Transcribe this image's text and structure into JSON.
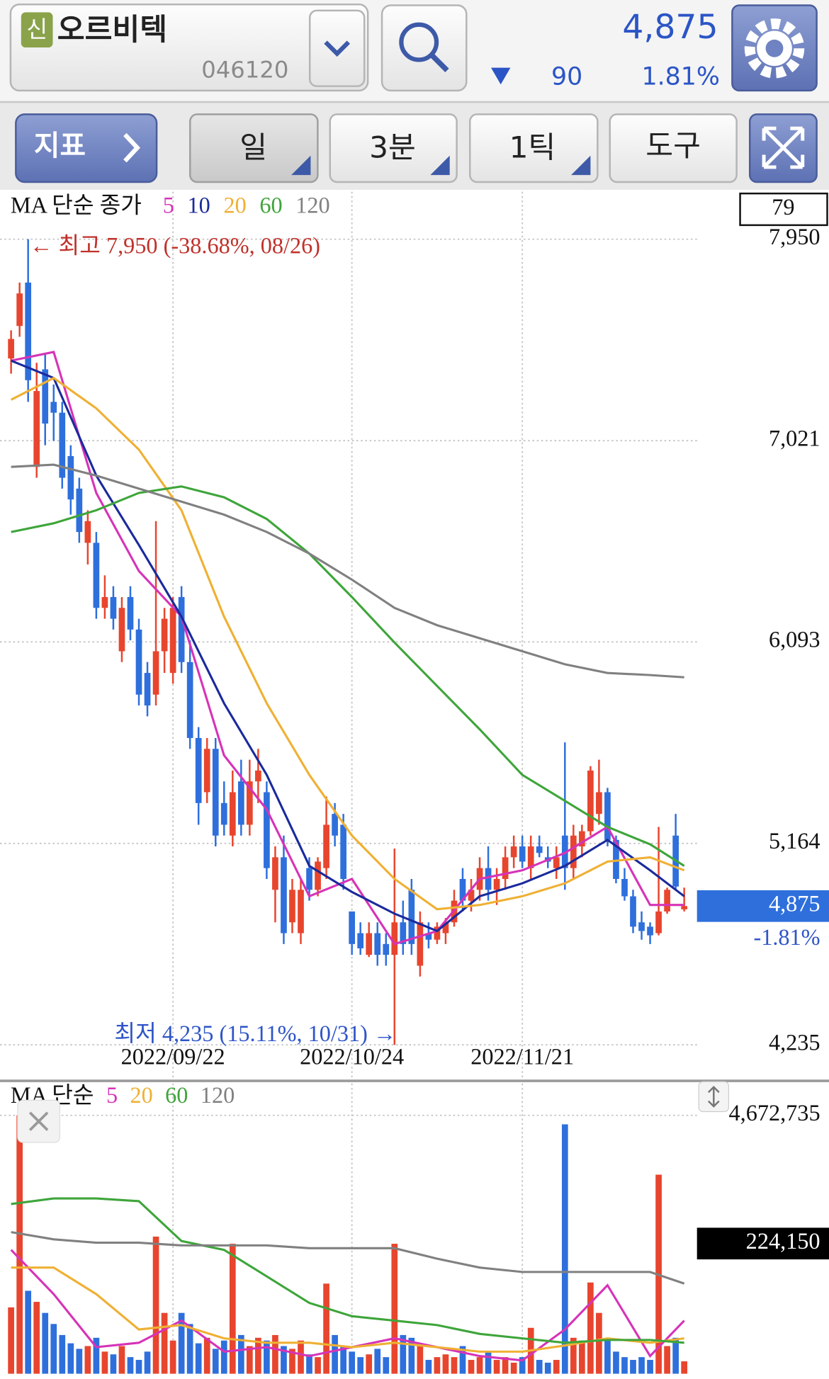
{
  "header": {
    "badge": "신",
    "name": "오르비텍",
    "code": "046120",
    "price": "4,875",
    "change": "90",
    "change_rate": "1.81%"
  },
  "toolbar": {
    "indicator": "지표",
    "period": "일",
    "minute": "3분",
    "tick": "1틱",
    "tools": "도구"
  },
  "chart_data": [
    {
      "type": "candlestick",
      "legend_title": "MA 단순 종가",
      "badge": "79",
      "up_color": "#e8452e",
      "down_color": "#2e6fdc",
      "candles": [
        [
          7400,
          7530,
          7330,
          7490
        ],
        [
          7550,
          7750,
          7500,
          7700
        ],
        [
          7750,
          7950,
          7200,
          7300
        ],
        [
          6900,
          7380,
          6850,
          7250
        ],
        [
          7350,
          7420,
          7000,
          7100
        ],
        [
          7200,
          7280,
          7020,
          7150
        ],
        [
          7150,
          7200,
          6800,
          6850
        ],
        [
          6950,
          7000,
          6680,
          6750
        ],
        [
          6800,
          6850,
          6550,
          6600
        ],
        [
          6550,
          6700,
          6450,
          6650
        ],
        [
          6550,
          6600,
          6200,
          6250
        ],
        [
          6250,
          6400,
          6200,
          6300
        ],
        [
          6300,
          6350,
          6150,
          6200
        ],
        [
          6050,
          6300,
          6000,
          6250
        ],
        [
          6300,
          6350,
          6100,
          6150
        ],
        [
          6150,
          6200,
          5800,
          5850
        ],
        [
          5950,
          6000,
          5750,
          5800
        ],
        [
          5850,
          6650,
          5800,
          6050
        ],
        [
          6050,
          6250,
          5950,
          6200
        ],
        [
          5950,
          6300,
          5900,
          6250
        ],
        [
          6300,
          6350,
          5950,
          6000
        ],
        [
          6000,
          6100,
          5600,
          5650
        ],
        [
          5650,
          5700,
          5250,
          5350
        ],
        [
          5400,
          5650,
          5350,
          5600
        ],
        [
          5600,
          5650,
          5150,
          5200
        ],
        [
          5350,
          5450,
          5200,
          5250
        ],
        [
          5200,
          5500,
          5150,
          5400
        ],
        [
          5450,
          5550,
          5200,
          5250
        ],
        [
          5250,
          5550,
          5200,
          5450
        ],
        [
          5450,
          5600,
          5350,
          5500
        ],
        [
          5400,
          5450,
          5000,
          5050
        ],
        [
          4950,
          5150,
          4800,
          5100
        ],
        [
          5100,
          5200,
          4700,
          4750
        ],
        [
          4800,
          5000,
          4750,
          4950
        ],
        [
          4750,
          5000,
          4700,
          4950
        ],
        [
          5050,
          5100,
          4900,
          4950
        ],
        [
          4950,
          5100,
          4920,
          5080
        ],
        [
          5050,
          5380,
          5000,
          5250
        ],
        [
          5300,
          5350,
          5150,
          5200
        ],
        [
          5250,
          5300,
          4950,
          5000
        ],
        [
          4850,
          4850,
          4650,
          4700
        ],
        [
          4750,
          4800,
          4650,
          4680
        ],
        [
          4650,
          4800,
          4640,
          4750
        ],
        [
          4750,
          4800,
          4600,
          4650
        ],
        [
          4700,
          4750,
          4600,
          4650
        ],
        [
          4650,
          5140,
          4235,
          4800
        ],
        [
          4800,
          4900,
          4650,
          4700
        ],
        [
          4950,
          5000,
          4650,
          4700
        ],
        [
          4600,
          4850,
          4550,
          4800
        ],
        [
          4750,
          4800,
          4680,
          4720
        ],
        [
          4720,
          4800,
          4700,
          4780
        ],
        [
          4750,
          4820,
          4700,
          4800
        ],
        [
          4800,
          4950,
          4780,
          4900
        ],
        [
          5000,
          5050,
          4850,
          4900
        ],
        [
          4900,
          5000,
          4850,
          4950
        ],
        [
          4950,
          5100,
          4900,
          5050
        ],
        [
          5050,
          5150,
          4900,
          4950
        ],
        [
          4950,
          5050,
          4880,
          5000
        ],
        [
          5000,
          5150,
          4950,
          5100
        ],
        [
          5100,
          5200,
          5050,
          5150
        ],
        [
          5150,
          5200,
          5050,
          5080
        ],
        [
          5050,
          5200,
          5000,
          5150
        ],
        [
          5150,
          5200,
          5100,
          5120
        ],
        [
          5100,
          5150,
          5050,
          5080
        ],
        [
          5050,
          5150,
          5000,
          5100
        ],
        [
          5200,
          5630,
          4950,
          5050
        ],
        [
          5050,
          5250,
          5000,
          5200
        ],
        [
          5150,
          5250,
          5100,
          5220
        ],
        [
          5220,
          5520,
          5200,
          5500
        ],
        [
          5300,
          5550,
          5250,
          5400
        ],
        [
          5400,
          5420,
          5150,
          5180
        ],
        [
          5180,
          5200,
          4980,
          5000
        ],
        [
          5000,
          5050,
          4900,
          4920
        ],
        [
          4920,
          4950,
          4750,
          4780
        ],
        [
          4800,
          4850,
          4720,
          4760
        ],
        [
          4780,
          4800,
          4700,
          4740
        ],
        [
          4750,
          5240,
          4740,
          4850
        ],
        [
          4850,
          4960,
          4840,
          4950
        ],
        [
          5200,
          5300,
          4950,
          4965
        ],
        [
          4860,
          4960,
          4850,
          4875
        ]
      ],
      "ma_x": [
        0,
        5,
        10,
        15,
        20,
        25,
        30,
        35,
        40,
        45,
        50,
        55,
        60,
        65,
        70,
        75,
        79
      ],
      "series": [
        {
          "name": "5",
          "color": "#d633b8",
          "values": [
            7390,
            7430,
            6780,
            6420,
            6210,
            5570,
            5320,
            4920,
            5000,
            4700,
            4760,
            5000,
            5040,
            5120,
            5240,
            4880,
            4880
          ]
        },
        {
          "name": "10",
          "color": "#1a2a9c",
          "values": [
            7390,
            7310,
            6860,
            6540,
            6210,
            5810,
            5480,
            5060,
            4940,
            4840,
            4760,
            4920,
            4980,
            5060,
            5180,
            5040,
            4920
          ]
        },
        {
          "name": "20",
          "color": "#efb033",
          "values": [
            7210,
            7310,
            7170,
            6980,
            6700,
            6210,
            5810,
            5480,
            5200,
            5000,
            4860,
            4880,
            4920,
            4980,
            5080,
            5100,
            5040
          ]
        },
        {
          "name": "60",
          "color": "#3ea53a",
          "values": [
            6600,
            6640,
            6700,
            6780,
            6810,
            6760,
            6660,
            6500,
            6300,
            6090,
            5890,
            5690,
            5480,
            5360,
            5240,
            5160,
            5060
          ]
        },
        {
          "name": "120",
          "color": "#808080",
          "values": [
            6900,
            6910,
            6860,
            6800,
            6740,
            6680,
            6600,
            6500,
            6380,
            6250,
            6170,
            6110,
            6050,
            5990,
            5950,
            5940,
            5930
          ]
        }
      ],
      "xlim": [
        -1.3,
        80.5
      ],
      "ylim": [
        4073,
        8169
      ],
      "xticks": [
        {
          "value": 19,
          "label": "2022/09/22"
        },
        {
          "value": 40,
          "label": "2022/10/24"
        },
        {
          "value": 60,
          "label": "2022/11/21"
        }
      ],
      "yticks": [
        {
          "value": 7950,
          "label": "7,950"
        },
        {
          "value": 7021,
          "label": "7,021"
        },
        {
          "value": 6093,
          "label": "6,093"
        },
        {
          "value": 5164,
          "label": "5,164"
        },
        {
          "value": 4235,
          "label": "4,235"
        }
      ],
      "grid": true,
      "annotations": {
        "high": "← 최고 7,950 (-38.68%, 08/26)",
        "low": "최저 4,235 (15.11%, 10/31) →"
      },
      "last_price": {
        "value": 4875,
        "label": "4,875"
      },
      "last_change": "-1.81%"
    },
    {
      "type": "bar",
      "legend_title": "MA 단순",
      "values": [
        1200000,
        4672735,
        1500000,
        1300000,
        1100000,
        900000,
        700000,
        550000,
        450000,
        500000,
        650000,
        400000,
        350000,
        500000,
        300000,
        250000,
        400000,
        2480000,
        1100000,
        600000,
        1100000,
        900000,
        550000,
        650000,
        450000,
        600000,
        2350000,
        700000,
        500000,
        650000,
        600000,
        700000,
        500000,
        450000,
        600000,
        350000,
        300000,
        1630000,
        700000,
        500000,
        400000,
        300000,
        350000,
        450000,
        300000,
        2350000,
        700000,
        650000,
        500000,
        250000,
        300000,
        350000,
        300000,
        500000,
        250000,
        300000,
        400000,
        250000,
        300000,
        200000,
        300000,
        830000,
        250000,
        200000,
        250000,
        4510000,
        650000,
        600000,
        1650000,
        1100000,
        600000,
        400000,
        300000,
        250000,
        300000,
        250000,
        3600000,
        500000,
        650000,
        224150
      ],
      "ma_x": [
        0,
        5,
        10,
        15,
        20,
        25,
        30,
        35,
        40,
        45,
        50,
        55,
        60,
        65,
        70,
        75,
        79
      ],
      "series": [
        {
          "name": "5",
          "color": "#d633b8",
          "values": [
            2240000,
            1440000,
            480000,
            560000,
            960000,
            400000,
            480000,
            320000,
            480000,
            640000,
            480000,
            320000,
            240000,
            800000,
            1600000,
            320000,
            960000
          ]
        },
        {
          "name": "20",
          "color": "#efb033",
          "values": [
            1920000,
            1920000,
            1440000,
            800000,
            880000,
            640000,
            560000,
            560000,
            480000,
            560000,
            480000,
            400000,
            400000,
            510000,
            640000,
            560000,
            640000
          ]
        },
        {
          "name": "60",
          "color": "#3ea53a",
          "values": [
            3070000,
            3170000,
            3170000,
            3120000,
            2400000,
            2240000,
            1760000,
            1280000,
            1040000,
            960000,
            880000,
            720000,
            640000,
            560000,
            610000,
            610000,
            560000
          ]
        },
        {
          "name": "120",
          "color": "#808080",
          "values": [
            2560000,
            2430000,
            2370000,
            2370000,
            2320000,
            2320000,
            2320000,
            2270000,
            2270000,
            2270000,
            2080000,
            1920000,
            1840000,
            1840000,
            1840000,
            1840000,
            1630000
          ]
        }
      ],
      "xlim": [
        -1.3,
        80.5
      ],
      "ylim": [
        0,
        5248700
      ],
      "yticks": [
        {
          "value": 4672735,
          "label": "4,672,735"
        }
      ],
      "current_label": "224,150"
    }
  ]
}
